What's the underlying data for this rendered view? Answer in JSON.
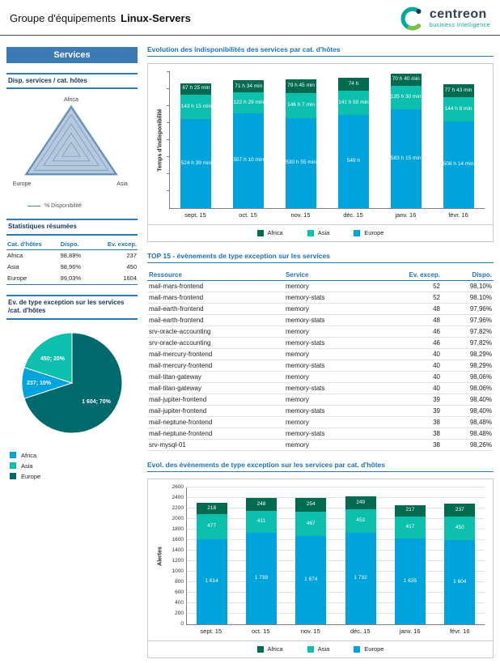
{
  "header": {
    "group_label": "Groupe d'équipements",
    "group_name": "Linux-Servers",
    "logo_text": "centreon",
    "logo_subtext": "business intelligence"
  },
  "sidebar": {
    "services_title": "Services",
    "stats": {
      "title": "Statistiques résumées",
      "headers": [
        "Cat. d'hôtes",
        "Dispo.",
        "Ev. excep."
      ],
      "rows": [
        [
          "Africa",
          "98,88%",
          "237"
        ],
        [
          "Asia",
          "98,96%",
          "450"
        ],
        [
          "Europe",
          "99,03%",
          "1604"
        ]
      ]
    }
  },
  "main": {
    "top15": {
      "title": "TOP 15 - évènements de type exception sur les services",
      "headers": [
        "Ressource",
        "Service",
        "Ev. excep.",
        "Dispo."
      ],
      "rows": [
        [
          "mail-mars-frontend",
          "memory",
          "52",
          "98,10%"
        ],
        [
          "mail-mars-frontend",
          "memory-stats",
          "52",
          "98,10%"
        ],
        [
          "mail-earth-frontend",
          "memory",
          "48",
          "97,96%"
        ],
        [
          "mail-earth-frontend",
          "memory-stats",
          "48",
          "97,96%"
        ],
        [
          "srv-oracle-accounting",
          "memory",
          "46",
          "97,82%"
        ],
        [
          "srv-oracle-accounting",
          "memory-stats",
          "46",
          "97,82%"
        ],
        [
          "mail-mercury-frontend",
          "memory",
          "40",
          "98,29%"
        ],
        [
          "mail-mercury-frontend",
          "memory-stats",
          "40",
          "98,29%"
        ],
        [
          "mail-titan-gateway",
          "memory",
          "40",
          "98,06%"
        ],
        [
          "mail-titan-gateway",
          "memory-stats",
          "40",
          "98,06%"
        ],
        [
          "mail-jupiter-frontend",
          "memory",
          "39",
          "98,40%"
        ],
        [
          "mail-jupiter-frontend",
          "memory-stats",
          "39",
          "98,40%"
        ],
        [
          "mail-neptune-frontend",
          "memory",
          "38",
          "98,48%"
        ],
        [
          "mail-neptune-frontend",
          "memory-stats",
          "38",
          "98,48%"
        ],
        [
          "srv-mysql-01",
          "memory",
          "38",
          "98,26%"
        ]
      ]
    }
  },
  "chart_data": [
    {
      "id": "radar-dispo",
      "type": "radar",
      "title": "Disp. services / cat. hôtes",
      "axes": [
        "Africa",
        "Europe",
        "Asia"
      ],
      "series": [
        {
          "name": "% Disponibilité",
          "values": [
            98.88,
            99.03,
            98.96
          ]
        }
      ]
    },
    {
      "id": "downtime-evolution",
      "type": "bar",
      "stacked": true,
      "title": "Evolution des indisponibilités des services par cat. d'hôtes",
      "ylabel": "Temps d'indisponibilité",
      "categories": [
        "sept. 15",
        "oct. 15",
        "nov. 15",
        "déc. 15",
        "janv. 16",
        "févr. 16"
      ],
      "ylim": [
        0,
        800
      ],
      "minor_tick_step": 100,
      "series": [
        {
          "name": "Europe",
          "color": "#00a3db",
          "values": [
            524.65,
            557.17,
            530.92,
            549,
            583.25,
            508.23
          ],
          "labels": [
            "524 h 39 min",
            "557 h 10 min",
            "530 h 55 min",
            "549 h",
            "583 h 15 min",
            "508 h 14 min"
          ]
        },
        {
          "name": "Asia",
          "color": "#0cc0ad",
          "values": [
            143.25,
            122.48,
            146.12,
            141.83,
            135.5,
            144.13
          ],
          "labels": [
            "143 h 15 min",
            "122 h 29 min",
            "146 h 7 min",
            "141 h 50 min",
            "135 h 30 min",
            "144 h 8 min"
          ]
        },
        {
          "name": "Africa",
          "color": "#006b4e",
          "values": [
            67.42,
            71.57,
            79.75,
            74,
            70.67,
            77.72
          ],
          "labels": [
            "67 h 25 min",
            "71 h 34 min",
            "79 h 45 min",
            "74 h",
            "70 h 40 min",
            "77 h 43 min"
          ]
        }
      ],
      "legend": [
        {
          "label": "Africa",
          "color": "#006b4e"
        },
        {
          "label": "Asia",
          "color": "#0cc0ad"
        },
        {
          "label": "Europe",
          "color": "#00a3db"
        }
      ]
    },
    {
      "id": "exception-pie",
      "type": "pie",
      "title": "Ev. de type exception sur les services /cat. d'hôtes",
      "slices": [
        {
          "name": "Europe",
          "value": 1604,
          "pct": 70,
          "label": "1 604; 70%",
          "color": "#00696b"
        },
        {
          "name": "Africa",
          "value": 237,
          "pct": 10,
          "label": "237; 10%",
          "color": "#00a3db"
        },
        {
          "name": "Asia",
          "value": 450,
          "pct": 20,
          "label": "450; 20%",
          "color": "#0cc0ad"
        }
      ],
      "legend": [
        {
          "label": "Africa",
          "color": "#00a3db"
        },
        {
          "label": "Asia",
          "color": "#0cc0ad"
        },
        {
          "label": "Europe",
          "color": "#00696b"
        }
      ]
    },
    {
      "id": "alerts-evolution",
      "type": "bar",
      "stacked": true,
      "title": "Evol. des évènements de type exception sur les services par cat. d'hôtes",
      "ylabel": "Alertes",
      "categories": [
        "sept. 15",
        "oct. 15",
        "nov. 15",
        "déc. 15",
        "janv. 16",
        "févr. 16"
      ],
      "ylim": [
        0,
        2600
      ],
      "ytick_step": 200,
      "series": [
        {
          "name": "Europe",
          "color": "#00a3db",
          "values": [
            1614,
            1739,
            1674,
            1732,
            1635,
            1604
          ],
          "labels": [
            "1 614",
            "1 739",
            "1 674",
            "1 732",
            "1 635",
            "1 604"
          ]
        },
        {
          "name": "Asia",
          "color": "#0cc0ad",
          "values": [
            477,
            411,
            467,
            453,
            417,
            450
          ],
          "labels": [
            "477",
            "411",
            "467",
            "453",
            "417",
            "450"
          ]
        },
        {
          "name": "Africa",
          "color": "#006b4e",
          "values": [
            218,
            248,
            254,
            249,
            217,
            237
          ],
          "labels": [
            "218",
            "248",
            "254",
            "249",
            "217",
            "237"
          ]
        }
      ],
      "legend": [
        {
          "label": "Africa",
          "color": "#006b4e"
        },
        {
          "label": "Asia",
          "color": "#0cc0ad"
        },
        {
          "label": "Europe",
          "color": "#00a3db"
        }
      ]
    }
  ]
}
